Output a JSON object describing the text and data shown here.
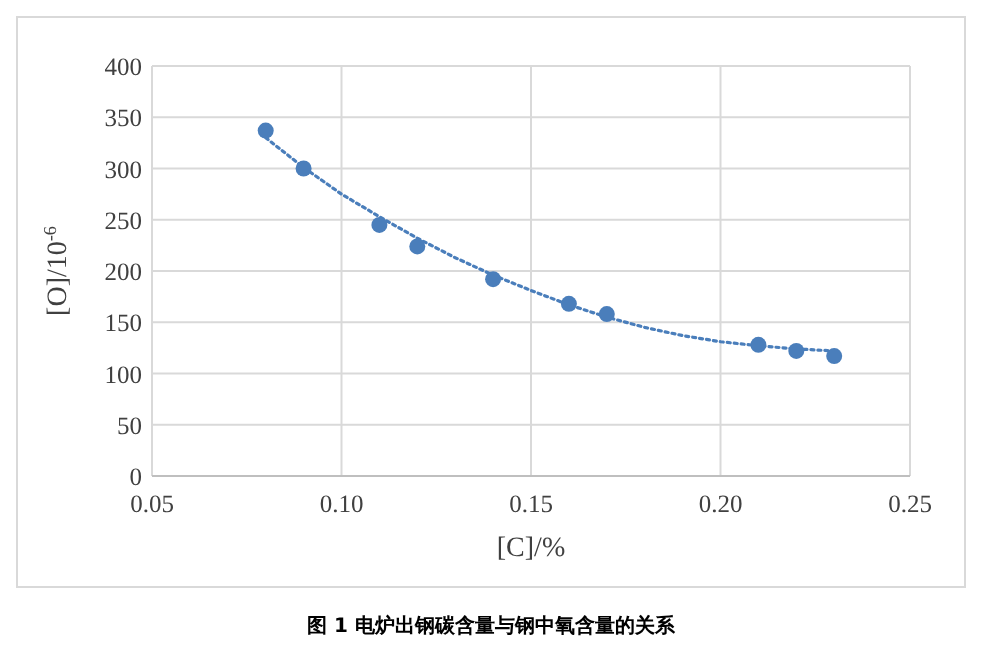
{
  "chart_data": {
    "type": "scatter",
    "xlabel": "[C]/%",
    "ylabel": "[O]/10$^{-6}$",
    "annotations": [
      "图 1 电炉出钢碳含量与钢中氧含量的关系"
    ],
    "xlim": [
      0.05,
      0.25
    ],
    "xticks": [
      {
        "value": 0.05,
        "label": "0.05"
      },
      {
        "value": 0.1,
        "label": "0.10"
      },
      {
        "value": 0.15,
        "label": "0.15"
      },
      {
        "value": 0.2,
        "label": "0.20"
      },
      {
        "value": 0.25,
        "label": "0.25"
      }
    ],
    "ylim": [
      0,
      400
    ],
    "yticks": [
      0,
      50,
      100,
      150,
      200,
      250,
      300,
      350,
      400
    ],
    "grid": true,
    "marker": "circle",
    "series": [
      {
        "color": "#4a7ebb",
        "x": [
          0.08,
          0.09,
          0.11,
          0.12,
          0.14,
          0.16,
          0.17,
          0.21,
          0.22,
          0.23
        ],
        "values": [
          337,
          300,
          245,
          224,
          192,
          168,
          158,
          128,
          122,
          117
        ]
      },
      {
        "type": "line",
        "line_style": "dotted",
        "marker": "none",
        "color": "#4a7ebb",
        "x": [
          0.08,
          0.09,
          0.1,
          0.11,
          0.12,
          0.13,
          0.14,
          0.15,
          0.16,
          0.17,
          0.18,
          0.19,
          0.2,
          0.21,
          0.22,
          0.23
        ],
        "values": [
          330,
          301,
          275,
          253,
          232,
          213,
          196,
          181,
          167,
          155,
          145,
          137,
          131,
          127,
          124,
          122
        ]
      }
    ]
  }
}
